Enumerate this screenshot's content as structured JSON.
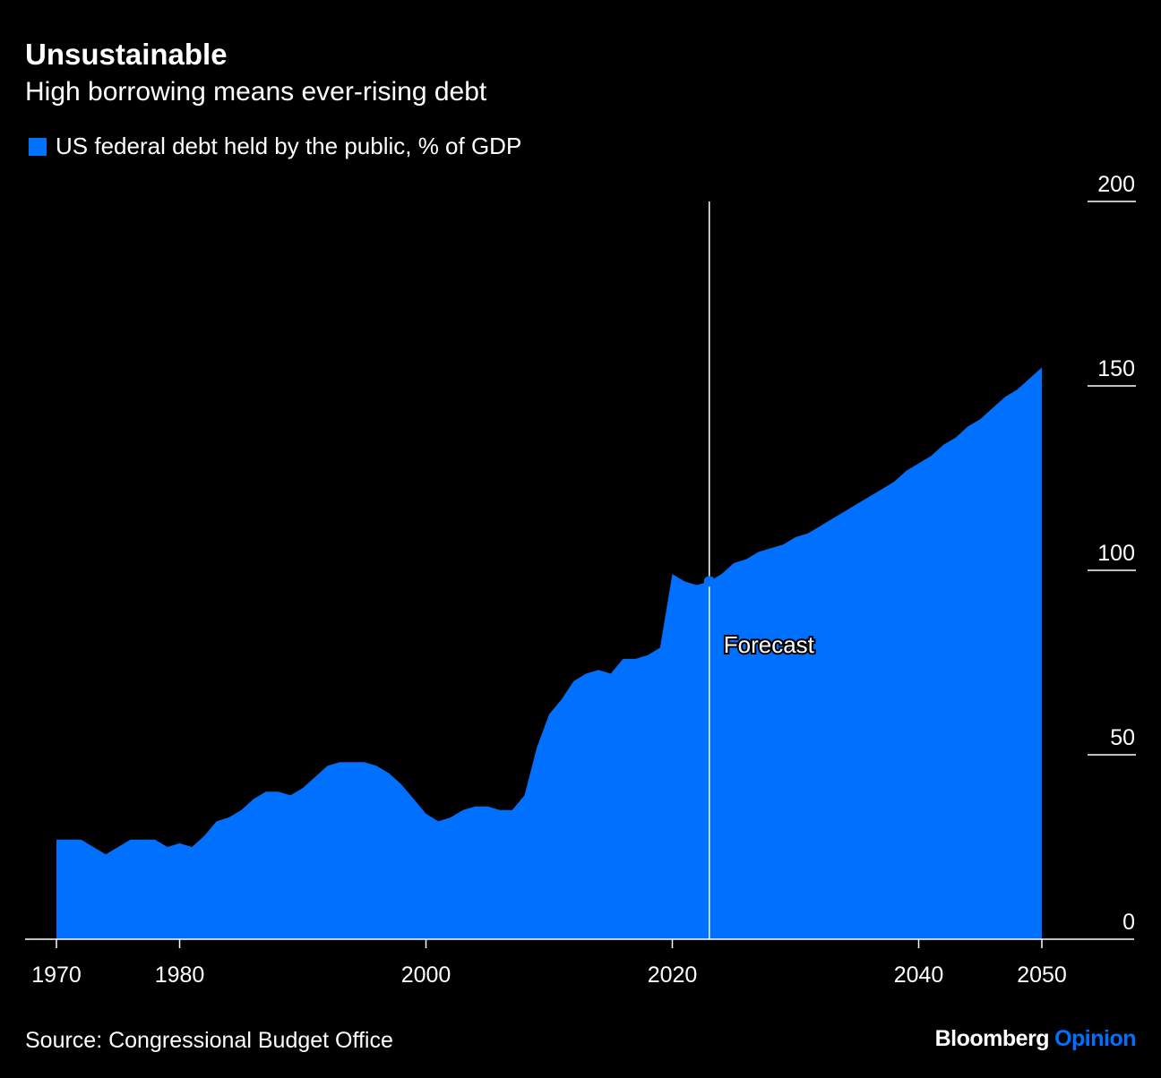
{
  "colors": {
    "background": "#000000",
    "accent": "#0070FF",
    "text": "#FFFFFF"
  },
  "title": "Unsustainable",
  "subtitle": "High borrowing means ever-rising debt",
  "source": "Source: Congressional Budget Office",
  "logo": {
    "brand": "Bloomberg",
    "section": "Opinion"
  },
  "chart_data": {
    "type": "area",
    "title": "Unsustainable",
    "subtitle": "High borrowing means ever-rising debt",
    "xlabel": "",
    "ylabel": "",
    "legend": {
      "placement": "top-left",
      "label": "US federal debt held by the public, % of GDP"
    },
    "series": [
      {
        "name": "US federal debt held by the public, % of GDP",
        "color": "#0070FF",
        "x": [
          1970,
          1971,
          1972,
          1973,
          1974,
          1975,
          1976,
          1977,
          1978,
          1979,
          1980,
          1981,
          1982,
          1983,
          1984,
          1985,
          1986,
          1987,
          1988,
          1989,
          1990,
          1991,
          1992,
          1993,
          1994,
          1995,
          1996,
          1997,
          1998,
          1999,
          2000,
          2001,
          2002,
          2003,
          2004,
          2005,
          2006,
          2007,
          2008,
          2009,
          2010,
          2011,
          2012,
          2013,
          2014,
          2015,
          2016,
          2017,
          2018,
          2019,
          2020,
          2021,
          2022,
          2023,
          2024,
          2025,
          2026,
          2027,
          2028,
          2029,
          2030,
          2031,
          2032,
          2033,
          2034,
          2035,
          2036,
          2037,
          2038,
          2039,
          2040,
          2041,
          2042,
          2043,
          2044,
          2045,
          2046,
          2047,
          2048,
          2049,
          2050
        ],
        "y": [
          27,
          27,
          27,
          25,
          23,
          25,
          27,
          27,
          27,
          25,
          26,
          25,
          28,
          32,
          33,
          35,
          38,
          40,
          40,
          39,
          41,
          44,
          47,
          48,
          48,
          48,
          47,
          45,
          42,
          38,
          34,
          32,
          33,
          35,
          36,
          36,
          35,
          35,
          39,
          52,
          61,
          65,
          70,
          72,
          73,
          72,
          76,
          76,
          77,
          79,
          99,
          97,
          96,
          97,
          99,
          102,
          103,
          105,
          106,
          107,
          109,
          110,
          112,
          114,
          116,
          118,
          120,
          122,
          124,
          127,
          129,
          131,
          134,
          136,
          139,
          141,
          144,
          147,
          149,
          152,
          155
        ]
      }
    ],
    "forecast_start": 2023,
    "annotations": [
      {
        "x": 2023,
        "label": "Forecast"
      }
    ],
    "xlim": [
      1970,
      2050
    ],
    "ylim": [
      0,
      200
    ],
    "x_ticks": [
      1970,
      1980,
      2000,
      2020,
      2040,
      2050
    ],
    "y_ticks": [
      0,
      50,
      100,
      150,
      200
    ],
    "grid": false
  }
}
